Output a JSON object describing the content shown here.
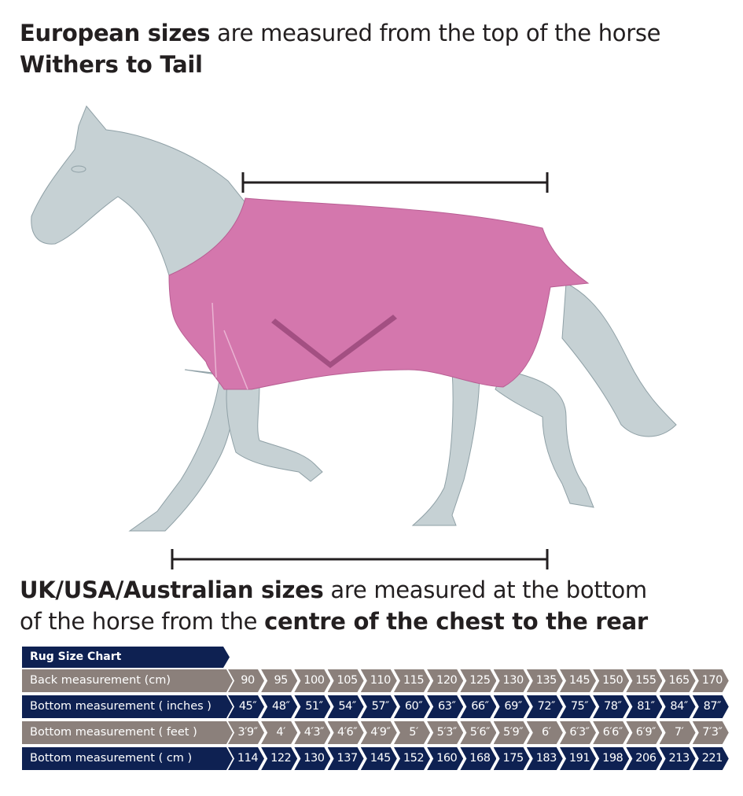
{
  "heading_top": {
    "bold1": "European sizes",
    "normal1": " are measured from the top of the horse",
    "bold2": "Withers to Tail"
  },
  "heading_bottom": {
    "bold1": "UK/USA/Australian sizes",
    "normal1": " are measured at the bottom",
    "normal2": "of the horse from the ",
    "bold2": "centre of the chest to the rear"
  },
  "colors": {
    "navy": "#0e2152",
    "grey": "#8b807b",
    "rug": "#d477ad",
    "horse": "#c6d1d4"
  },
  "chart": {
    "title": "Rug Size Chart",
    "rows": [
      {
        "label": "Back measurement (cm)",
        "style": "grey",
        "values": [
          "90",
          "95",
          "100",
          "105",
          "110",
          "115",
          "120",
          "125",
          "130",
          "135",
          "145",
          "150",
          "155",
          "165",
          "170"
        ]
      },
      {
        "label": "Bottom measurement ( inches )",
        "style": "navy",
        "values": [
          "45″",
          "48″",
          "51″",
          "54″",
          "57″",
          "60″",
          "63″",
          "66″",
          "69″",
          "72″",
          "75″",
          "78″",
          "81″",
          "84″",
          "87″"
        ]
      },
      {
        "label": "Bottom measurement ( feet )",
        "style": "grey",
        "values": [
          "3′9″",
          "4′",
          "4′3″",
          "4′6″",
          "4′9″",
          "5′",
          "5′3″",
          "5′6″",
          "5′9″",
          "6′",
          "6′3″",
          "6′6″",
          "6′9″",
          "7′",
          "7′3″"
        ]
      },
      {
        "label": "Bottom measurement ( cm )",
        "style": "navy",
        "values": [
          "114",
          "122",
          "130",
          "137",
          "145",
          "152",
          "160",
          "168",
          "175",
          "183",
          "191",
          "198",
          "206",
          "213",
          "221"
        ]
      }
    ]
  }
}
